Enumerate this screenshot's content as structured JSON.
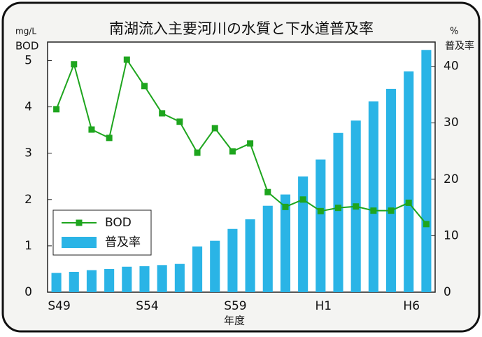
{
  "chart_data": {
    "type": "bar-line",
    "title": "南湖流入主要河川の水質と下水道普及率",
    "y_unit": "mg/L",
    "y_label": "BOD",
    "y2_unit": "%",
    "y2_label": "普及率",
    "x_label": "年度",
    "categories": [
      "S49",
      null,
      null,
      null,
      null,
      "S54",
      null,
      null,
      null,
      null,
      "S59",
      null,
      null,
      null,
      null,
      "H1",
      null,
      null,
      null,
      null,
      "H6",
      null
    ],
    "series": [
      {
        "name": "BOD",
        "type": "line",
        "color": "#1ea51e",
        "axis": "y",
        "values": [
          3.95,
          4.92,
          3.51,
          3.33,
          5.02,
          4.45,
          3.86,
          3.68,
          3.01,
          3.54,
          3.04,
          3.21,
          2.16,
          1.84,
          2.0,
          1.75,
          1.82,
          1.85,
          1.76,
          1.76,
          1.93,
          1.47
        ]
      },
      {
        "name": "普及率",
        "type": "bar",
        "color": "#2ab4e6",
        "axis": "y2",
        "values": [
          3.4,
          3.6,
          3.9,
          4.1,
          4.5,
          4.6,
          4.8,
          5.0,
          8.1,
          9.1,
          11.2,
          12.9,
          15.3,
          17.3,
          20.5,
          23.5,
          28.2,
          30.4,
          33.8,
          36.0,
          39.1,
          42.9
        ]
      }
    ],
    "ylim": [
      0,
      5.4
    ],
    "yticks": [
      0,
      1,
      2,
      3,
      4,
      5
    ],
    "y2lim": [
      0,
      44.3
    ],
    "y2ticks": [
      0,
      10,
      20,
      30,
      40
    ],
    "legend": "lower left"
  }
}
